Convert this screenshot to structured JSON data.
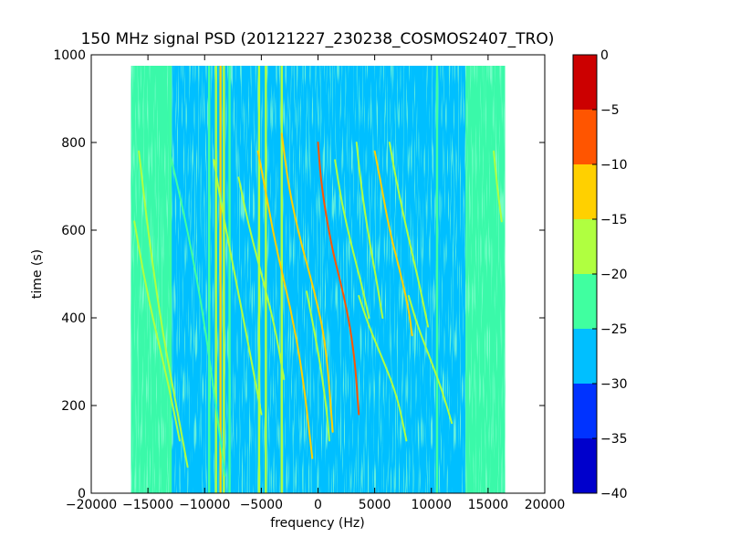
{
  "chart_data": {
    "type": "heatmap",
    "title": "150 MHz signal PSD (20121227_230238_COSMOS2407_TRO)",
    "xlabel": "frequency (Hz)",
    "ylabel": "time (s)",
    "xlim": [
      -20000,
      20000
    ],
    "ylim": [
      0,
      1000
    ],
    "x_ticks": [
      -20000,
      -15000,
      -10000,
      -5000,
      0,
      5000,
      10000,
      15000,
      20000
    ],
    "y_ticks": [
      0,
      200,
      400,
      600,
      800,
      1000
    ],
    "x_tick_labels": [
      "−20000",
      "−15000",
      "−10000",
      "−5000",
      "0",
      "5000",
      "10000",
      "15000",
      "20000"
    ],
    "y_tick_labels": [
      "0",
      "200",
      "400",
      "600",
      "800",
      "1000"
    ],
    "data_extent": {
      "x": [
        -16500,
        16500
      ],
      "y": [
        0,
        975
      ]
    },
    "background_level_db": -27,
    "edge_level_db": -22,
    "edge_bands_hz": [
      [
        -16500,
        -13000
      ],
      [
        13000,
        16500
      ]
    ],
    "grid": false,
    "colorbar": {
      "levels": [
        -40,
        -35,
        -30,
        -25,
        -20,
        -15,
        -10,
        -5,
        0
      ],
      "tick_labels": [
        "−40",
        "−35",
        "−30",
        "−25",
        "−20",
        "−15",
        "−10",
        "−5",
        "0"
      ],
      "colors": [
        "#0000cc",
        "#0033ff",
        "#00bfff",
        "#40ffa0",
        "#b0ff40",
        "#ffd000",
        "#ff5500",
        "#cc0000"
      ]
    },
    "vertical_lines": [
      {
        "x": -13000,
        "level": -22
      },
      {
        "x": -9600,
        "level": -22
      },
      {
        "x": -9000,
        "level": -17
      },
      {
        "x": -8600,
        "level": -12
      },
      {
        "x": -8300,
        "level": -17
      },
      {
        "x": -7800,
        "level": -22
      },
      {
        "x": -5200,
        "level": -17
      },
      {
        "x": -4600,
        "level": -17
      },
      {
        "x": -3200,
        "level": -17
      },
      {
        "x": 10500,
        "level": -22
      }
    ],
    "doppler_traces": [
      {
        "points": [
          [
            -15800,
            780
          ],
          [
            -15000,
            600
          ],
          [
            -13800,
            380
          ],
          [
            -12500,
            200
          ],
          [
            -11500,
            60
          ]
        ],
        "level": -17
      },
      {
        "points": [
          [
            -16200,
            620
          ],
          [
            -15400,
            500
          ],
          [
            -14400,
            380
          ],
          [
            -13200,
            250
          ],
          [
            -12200,
            120
          ]
        ],
        "level": -17
      },
      {
        "points": [
          [
            -13000,
            770
          ],
          [
            -11500,
            600
          ],
          [
            -10200,
            420
          ],
          [
            -9000,
            200
          ],
          [
            -8200,
            40
          ]
        ],
        "level": -22
      },
      {
        "points": [
          [
            -9200,
            760
          ],
          [
            -8400,
            640
          ],
          [
            -7200,
            480
          ],
          [
            -6000,
            320
          ],
          [
            -5000,
            180
          ]
        ],
        "level": -17
      },
      {
        "points": [
          [
            -5300,
            780
          ],
          [
            -4700,
            700
          ],
          [
            -3700,
            560
          ],
          [
            -2400,
            420
          ],
          [
            -1400,
            280
          ],
          [
            -500,
            80
          ]
        ],
        "level": -12
      },
      {
        "points": [
          [
            -3200,
            820
          ],
          [
            -2600,
            700
          ],
          [
            -1600,
            580
          ],
          [
            -300,
            460
          ],
          [
            700,
            340
          ],
          [
            1300,
            140
          ]
        ],
        "level": -12
      },
      {
        "points": [
          [
            -7000,
            720
          ],
          [
            -6200,
            620
          ],
          [
            -5000,
            500
          ],
          [
            -3800,
            380
          ],
          [
            -3000,
            260
          ]
        ],
        "level": -17
      },
      {
        "points": [
          [
            0,
            800
          ],
          [
            300,
            700
          ],
          [
            1200,
            560
          ],
          [
            2400,
            440
          ],
          [
            3200,
            320
          ],
          [
            3600,
            180
          ]
        ],
        "level": -7
      },
      {
        "points": [
          [
            -1000,
            460
          ],
          [
            -400,
            380
          ],
          [
            300,
            280
          ],
          [
            800,
            180
          ],
          [
            1000,
            120
          ]
        ],
        "level": -17
      },
      {
        "points": [
          [
            3400,
            800
          ],
          [
            3800,
            700
          ],
          [
            4500,
            580
          ],
          [
            5200,
            480
          ],
          [
            5700,
            400
          ]
        ],
        "level": -17
      },
      {
        "points": [
          [
            1500,
            760
          ],
          [
            2100,
            660
          ],
          [
            3000,
            560
          ],
          [
            3900,
            470
          ],
          [
            4500,
            400
          ]
        ],
        "level": -17
      },
      {
        "points": [
          [
            3600,
            450
          ],
          [
            4500,
            380
          ],
          [
            5800,
            300
          ],
          [
            7000,
            220
          ],
          [
            7800,
            120
          ]
        ],
        "level": -17
      },
      {
        "points": [
          [
            5000,
            780
          ],
          [
            5600,
            700
          ],
          [
            6300,
            600
          ],
          [
            7200,
            510
          ],
          [
            8000,
            420
          ],
          [
            8300,
            360
          ]
        ],
        "level": -12
      },
      {
        "points": [
          [
            6300,
            800
          ],
          [
            7000,
            700
          ],
          [
            8000,
            580
          ],
          [
            9000,
            470
          ],
          [
            9700,
            380
          ]
        ],
        "level": -17
      },
      {
        "points": [
          [
            8000,
            450
          ],
          [
            8800,
            380
          ],
          [
            10000,
            300
          ],
          [
            11000,
            230
          ],
          [
            11800,
            160
          ]
        ],
        "level": -17
      },
      {
        "points": [
          [
            15500,
            780
          ],
          [
            15800,
            700
          ],
          [
            16200,
            620
          ]
        ],
        "level": -17
      }
    ]
  }
}
